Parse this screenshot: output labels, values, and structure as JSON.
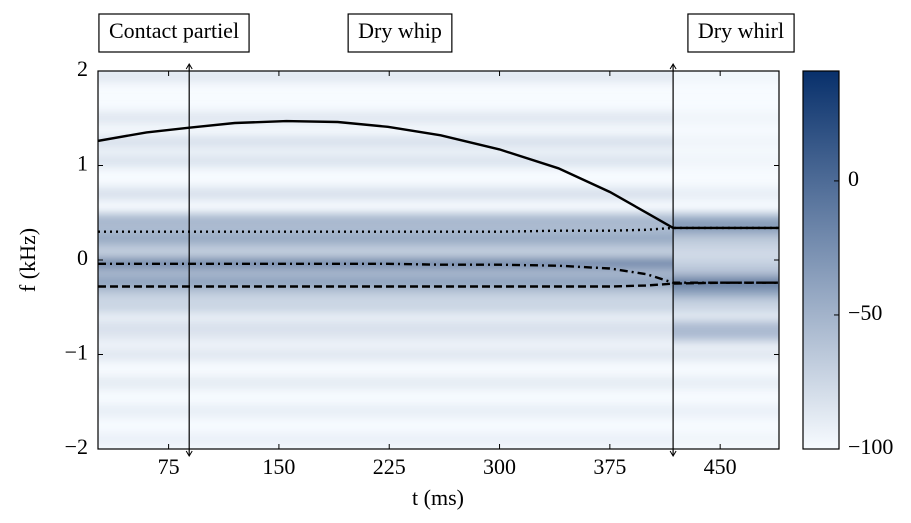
{
  "chart_data": {
    "type": "spectrogram",
    "xlabel": "t (ms)",
    "ylabel": "f (kHz)",
    "xlim": [
      27,
      490
    ],
    "ylim": [
      -2,
      2
    ],
    "xticks": [
      75,
      150,
      225,
      300,
      375,
      450
    ],
    "yticks": [
      {
        "value": -2,
        "label": "−2"
      },
      {
        "value": -1,
        "label": "−1"
      },
      0,
      1,
      2
    ],
    "clim": [
      -100,
      41
    ],
    "cticks": [
      {
        "value": -100,
        "label": "−100"
      },
      {
        "value": -50,
        "label": "−50"
      },
      0
    ],
    "colormap": [
      "#f7fbff",
      "#08306b"
    ],
    "markers": [
      89,
      418
    ],
    "annotations": [
      "Contact partiel",
      "Dry whip",
      "Dry whirl"
    ],
    "heatmap": {
      "t_edges": [
        27,
        418,
        490
      ],
      "f": [
        1.95,
        1.5,
        1.25,
        1.05,
        0.7,
        0.42,
        0.33,
        0.22,
        0.1,
        -0.04,
        -0.15,
        -0.25,
        -0.35,
        -0.5,
        -0.7,
        -0.8,
        -1.0,
        -1.3,
        -1.6,
        -1.9
      ],
      "levels": [
        [
          -85,
          -85,
          -80,
          -82,
          -80,
          -45,
          -60,
          -40,
          -70,
          -10,
          -60,
          -30,
          -65,
          -70,
          -80,
          -85,
          -85,
          -88,
          -90,
          -92
        ],
        [
          -95,
          -95,
          -95,
          -95,
          -90,
          -40,
          -30,
          -65,
          -75,
          -70,
          -60,
          0,
          -40,
          -70,
          -55,
          -55,
          -85,
          -90,
          -92,
          -95
        ]
      ]
    },
    "x": [
      27,
      60,
      89,
      120,
      155,
      190,
      224,
      260,
      300,
      340,
      375,
      400,
      418,
      450,
      490
    ],
    "series": [
      {
        "color": "#000000",
        "dash": "solid",
        "values": [
          1.26,
          1.35,
          1.4,
          1.45,
          1.47,
          1.46,
          1.41,
          1.32,
          1.17,
          0.97,
          0.72,
          0.5,
          0.34,
          0.34,
          0.34
        ]
      },
      {
        "color": "#000000",
        "dash": "dotted",
        "values": [
          0.3,
          0.3,
          0.3,
          0.3,
          0.3,
          0.3,
          0.3,
          0.3,
          0.3,
          0.31,
          0.31,
          0.32,
          0.34,
          0.34,
          0.34
        ]
      },
      {
        "color": "#000000",
        "dash": "dashdot",
        "values": [
          -0.04,
          -0.04,
          -0.04,
          -0.04,
          -0.04,
          -0.04,
          -0.04,
          -0.05,
          -0.05,
          -0.06,
          -0.09,
          -0.15,
          -0.24,
          -0.24,
          -0.24
        ]
      },
      {
        "color": "#000000",
        "dash": "dashed",
        "values": [
          -0.28,
          -0.28,
          -0.28,
          -0.28,
          -0.28,
          -0.28,
          -0.28,
          -0.28,
          -0.28,
          -0.28,
          -0.28,
          -0.27,
          -0.25,
          -0.24,
          -0.24
        ]
      }
    ]
  }
}
